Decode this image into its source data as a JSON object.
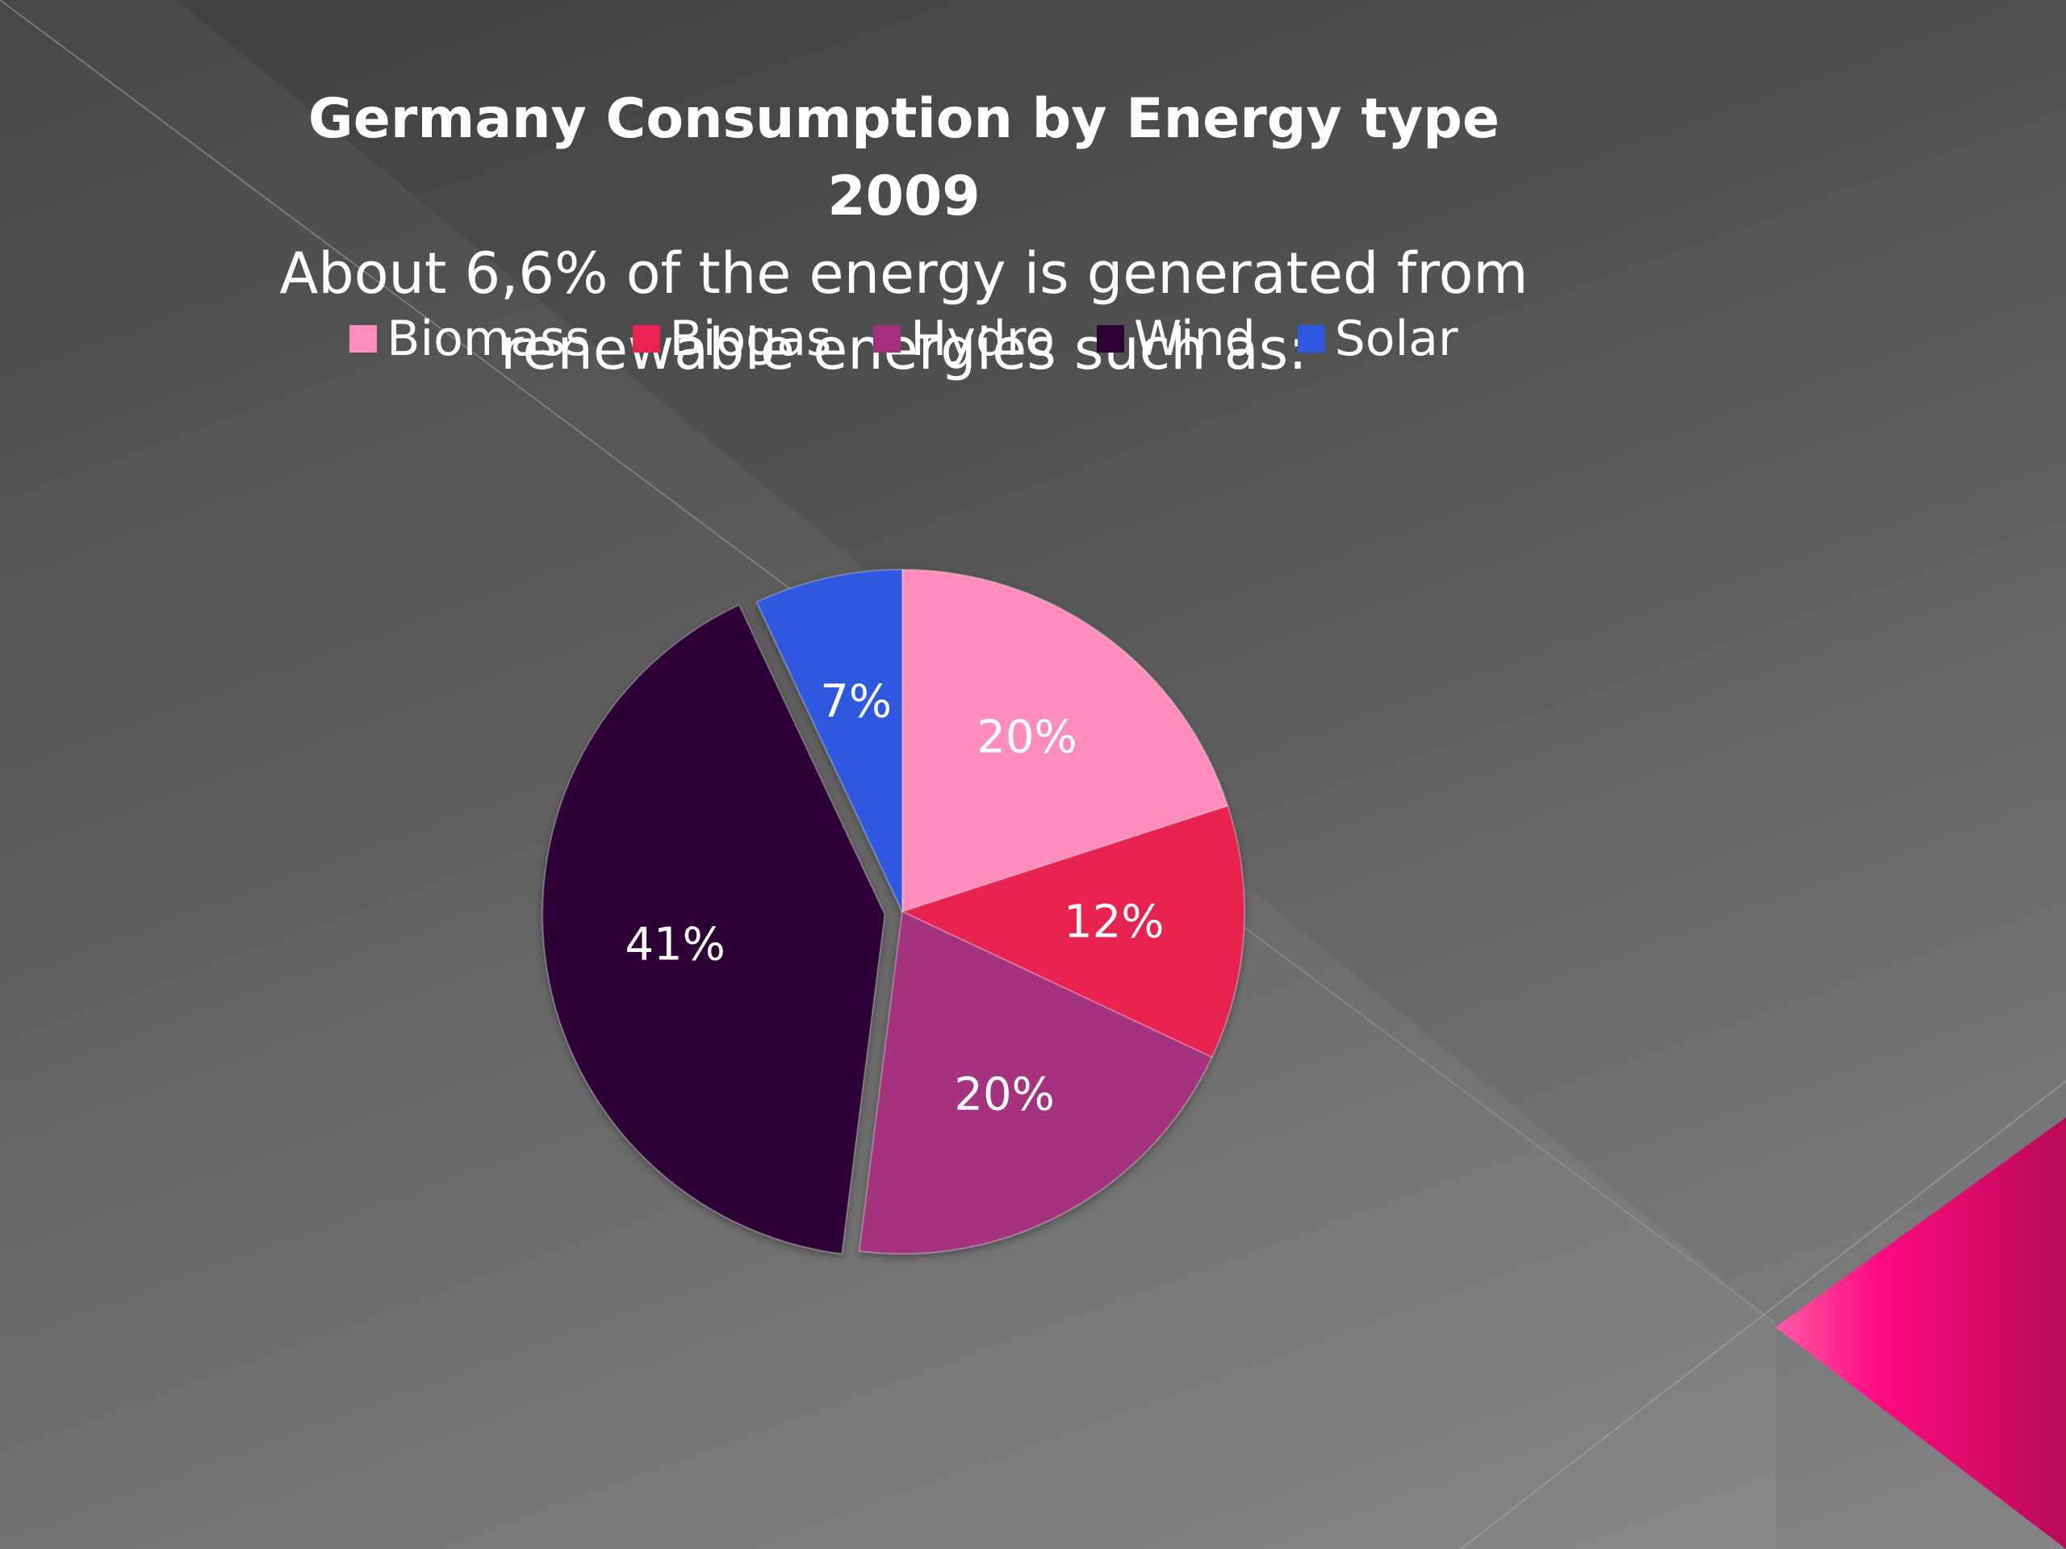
{
  "chart_data": {
    "type": "pie",
    "title": "Germany Consumption by Energy type 2009",
    "subtitle": "About 6,6% of the energy is generated from renewable energies such as:",
    "legend_position": "top",
    "categories": [
      "Biomass",
      "Biogas",
      "Hydro",
      "Wind",
      "Solar"
    ],
    "values": [
      20,
      12,
      20,
      41,
      7
    ],
    "labels": [
      "20%",
      "12%",
      "20%",
      "41%",
      "7%"
    ],
    "colors": [
      "#ff8cba",
      "#e8234f",
      "#a5307f",
      "#2f0038",
      "#2e58e0"
    ],
    "exploded": [
      "Wind"
    ]
  }
}
